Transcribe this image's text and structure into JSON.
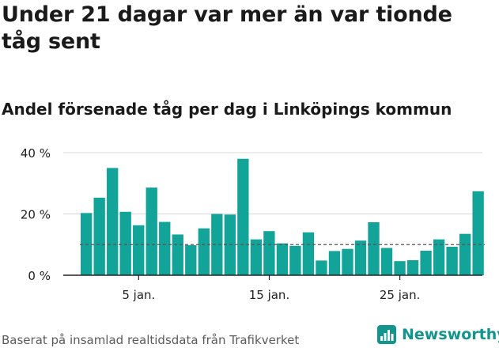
{
  "header": {
    "title": "Under 21 dagar var mer än var tionde tåg sent",
    "subtitle": "Andel försenade tåg per dag i Linköpings kommun"
  },
  "footer": {
    "source": "Baserat på insamlad realtidsdata från Trafikverket",
    "brand": "Newsworthy",
    "brand_icon": "newsworthy-logo-icon"
  },
  "colors": {
    "bar": "#12a399",
    "reference_line": "#555555",
    "grid": "#d9d9d9",
    "axis": "#222222",
    "brand": "#12958c"
  },
  "chart_data": {
    "type": "bar",
    "title": "Andel försenade tåg per dag i Linköpings kommun",
    "xlabel": "",
    "ylabel": "",
    "ylim": [
      0,
      40
    ],
    "yticks": [
      0,
      20,
      40
    ],
    "ytick_labels": [
      "0 %",
      "20 %",
      "40 %"
    ],
    "x_unit": "day of January",
    "x": [
      1,
      2,
      3,
      4,
      5,
      6,
      7,
      8,
      9,
      10,
      11,
      12,
      13,
      14,
      15,
      16,
      17,
      18,
      19,
      20,
      21,
      22,
      23,
      24,
      25,
      26,
      27,
      28,
      29,
      30,
      31
    ],
    "values": [
      20.3,
      25.3,
      35.0,
      20.7,
      16.3,
      28.6,
      17.4,
      13.3,
      9.8,
      15.3,
      20.0,
      19.8,
      38.0,
      11.7,
      14.4,
      10.4,
      9.6,
      14.0,
      4.8,
      7.9,
      8.6,
      11.3,
      17.3,
      8.9,
      4.6,
      4.9,
      8.0,
      11.7,
      9.3,
      13.5,
      27.4
    ],
    "xticks": [
      5,
      15,
      25
    ],
    "xtick_labels": [
      "5 jan.",
      "15 jan.",
      "25 jan."
    ],
    "reference_line": {
      "value": 10,
      "style": "dashed"
    },
    "grid": true,
    "legend": "none"
  }
}
